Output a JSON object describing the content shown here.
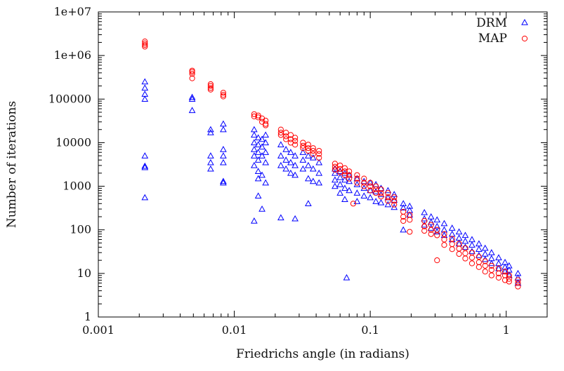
{
  "chart_data": {
    "type": "scatter",
    "title": "",
    "xlabel": "Friedrichs angle (in radians)",
    "ylabel": "Number of iterations",
    "xscale": "log",
    "yscale": "log",
    "xlim": [
      0.001,
      2
    ],
    "ylim": [
      1,
      10000000
    ],
    "grid": false,
    "legend_position": "top-right",
    "x_ticks": [
      {
        "value": 0.001,
        "label": "0.001"
      },
      {
        "value": 0.01,
        "label": "0.01"
      },
      {
        "value": 0.1,
        "label": "0.1"
      },
      {
        "value": 1,
        "label": "1"
      }
    ],
    "y_ticks": [
      {
        "value": 1,
        "label": "1"
      },
      {
        "value": 10,
        "label": "10"
      },
      {
        "value": 100,
        "label": "100"
      },
      {
        "value": 1000,
        "label": "1000"
      },
      {
        "value": 10000,
        "label": "10000"
      },
      {
        "value": 100000,
        "label": "100000"
      },
      {
        "value": 1000000,
        "label": "1e+06"
      },
      {
        "value": 10000000,
        "label": "1e+07"
      }
    ],
    "series": [
      {
        "name": "DRM",
        "marker": "triangle",
        "color": "#0000ff",
        "points": [
          [
            0.0022,
            250000
          ],
          [
            0.0022,
            180000
          ],
          [
            0.0022,
            130000
          ],
          [
            0.0022,
            100000
          ],
          [
            0.0022,
            5000
          ],
          [
            0.0022,
            2900
          ],
          [
            0.0022,
            2700
          ],
          [
            0.0022,
            550
          ],
          [
            0.0049,
            110000
          ],
          [
            0.0049,
            100000
          ],
          [
            0.0049,
            55000
          ],
          [
            0.0067,
            20000
          ],
          [
            0.0067,
            17000
          ],
          [
            0.0067,
            5000
          ],
          [
            0.0067,
            3500
          ],
          [
            0.0067,
            2500
          ],
          [
            0.0083,
            27000
          ],
          [
            0.0083,
            20000
          ],
          [
            0.0083,
            7000
          ],
          [
            0.0083,
            5000
          ],
          [
            0.0083,
            3500
          ],
          [
            0.0083,
            1300
          ],
          [
            0.0083,
            1200
          ],
          [
            0.014,
            20000
          ],
          [
            0.014,
            15000
          ],
          [
            0.014,
            10000
          ],
          [
            0.014,
            7000
          ],
          [
            0.014,
            5000
          ],
          [
            0.014,
            3000
          ],
          [
            0.014,
            160
          ],
          [
            0.015,
            13000
          ],
          [
            0.015,
            9000
          ],
          [
            0.015,
            6000
          ],
          [
            0.015,
            4000
          ],
          [
            0.015,
            2200
          ],
          [
            0.015,
            1500
          ],
          [
            0.015,
            600
          ],
          [
            0.016,
            12000
          ],
          [
            0.016,
            8000
          ],
          [
            0.016,
            5000
          ],
          [
            0.016,
            1800
          ],
          [
            0.016,
            300
          ],
          [
            0.017,
            15000
          ],
          [
            0.017,
            10000
          ],
          [
            0.017,
            6000
          ],
          [
            0.017,
            3500
          ],
          [
            0.017,
            1200
          ],
          [
            0.022,
            9000
          ],
          [
            0.022,
            5000
          ],
          [
            0.022,
            3000
          ],
          [
            0.022,
            190
          ],
          [
            0.024,
            7000
          ],
          [
            0.024,
            4000
          ],
          [
            0.024,
            2500
          ],
          [
            0.026,
            6000
          ],
          [
            0.026,
            3500
          ],
          [
            0.026,
            2000
          ],
          [
            0.028,
            5000
          ],
          [
            0.028,
            3000
          ],
          [
            0.028,
            1800
          ],
          [
            0.028,
            180
          ],
          [
            0.032,
            6000
          ],
          [
            0.032,
            4000
          ],
          [
            0.032,
            2500
          ],
          [
            0.035,
            5000
          ],
          [
            0.035,
            3000
          ],
          [
            0.035,
            1500
          ],
          [
            0.038,
            4500
          ],
          [
            0.038,
            2500
          ],
          [
            0.038,
            1300
          ],
          [
            0.042,
            3500
          ],
          [
            0.042,
            2000
          ],
          [
            0.042,
            1200
          ],
          [
            0.035,
            400
          ],
          [
            0.055,
            2500
          ],
          [
            0.055,
            2000
          ],
          [
            0.055,
            1400
          ],
          [
            0.055,
            1000
          ],
          [
            0.06,
            2200
          ],
          [
            0.06,
            1600
          ],
          [
            0.06,
            1100
          ],
          [
            0.06,
            700
          ],
          [
            0.065,
            2000
          ],
          [
            0.065,
            1400
          ],
          [
            0.065,
            900
          ],
          [
            0.065,
            500
          ],
          [
            0.07,
            1800
          ],
          [
            0.07,
            1300
          ],
          [
            0.07,
            800
          ],
          [
            0.067,
            8
          ],
          [
            0.08,
            1500
          ],
          [
            0.08,
            1100
          ],
          [
            0.08,
            700
          ],
          [
            0.08,
            450
          ],
          [
            0.09,
            1300
          ],
          [
            0.09,
            900
          ],
          [
            0.09,
            600
          ],
          [
            0.1,
            1200
          ],
          [
            0.1,
            800
          ],
          [
            0.1,
            550
          ],
          [
            0.11,
            1100
          ],
          [
            0.11,
            750
          ],
          [
            0.11,
            450
          ],
          [
            0.12,
            900
          ],
          [
            0.12,
            650
          ],
          [
            0.12,
            420
          ],
          [
            0.135,
            800
          ],
          [
            0.135,
            550
          ],
          [
            0.135,
            380
          ],
          [
            0.15,
            650
          ],
          [
            0.15,
            480
          ],
          [
            0.15,
            330
          ],
          [
            0.175,
            400
          ],
          [
            0.175,
            320
          ],
          [
            0.175,
            100
          ],
          [
            0.195,
            350
          ],
          [
            0.195,
            280
          ],
          [
            0.195,
            220
          ],
          [
            0.25,
            250
          ],
          [
            0.25,
            180
          ],
          [
            0.25,
            130
          ],
          [
            0.28,
            200
          ],
          [
            0.28,
            150
          ],
          [
            0.28,
            110
          ],
          [
            0.31,
            170
          ],
          [
            0.31,
            120
          ],
          [
            0.31,
            90
          ],
          [
            0.35,
            140
          ],
          [
            0.35,
            100
          ],
          [
            0.35,
            75
          ],
          [
            0.4,
            110
          ],
          [
            0.4,
            80
          ],
          [
            0.4,
            60
          ],
          [
            0.45,
            90
          ],
          [
            0.45,
            65
          ],
          [
            0.45,
            48
          ],
          [
            0.5,
            75
          ],
          [
            0.5,
            55
          ],
          [
            0.5,
            40
          ],
          [
            0.56,
            60
          ],
          [
            0.56,
            45
          ],
          [
            0.56,
            32
          ],
          [
            0.63,
            48
          ],
          [
            0.63,
            36
          ],
          [
            0.63,
            26
          ],
          [
            0.7,
            38
          ],
          [
            0.7,
            28
          ],
          [
            0.7,
            21
          ],
          [
            0.78,
            30
          ],
          [
            0.78,
            22
          ],
          [
            0.78,
            17
          ],
          [
            0.88,
            23
          ],
          [
            0.88,
            17
          ],
          [
            0.88,
            13
          ],
          [
            0.98,
            18
          ],
          [
            0.98,
            14
          ],
          [
            0.98,
            11
          ],
          [
            1.05,
            15
          ],
          [
            1.05,
            12
          ],
          [
            1.05,
            9
          ],
          [
            1.22,
            10
          ],
          [
            1.22,
            8
          ],
          [
            1.22,
            6
          ]
        ]
      },
      {
        "name": "MAP",
        "marker": "circle",
        "color": "#ff0000",
        "points": [
          [
            0.0022,
            2100000
          ],
          [
            0.0022,
            1900000
          ],
          [
            0.0022,
            1750000
          ],
          [
            0.0022,
            1600000
          ],
          [
            0.0049,
            450000
          ],
          [
            0.0049,
            420000
          ],
          [
            0.0049,
            380000
          ],
          [
            0.0049,
            300000
          ],
          [
            0.0067,
            220000
          ],
          [
            0.0067,
            200000
          ],
          [
            0.0067,
            180000
          ],
          [
            0.0067,
            165000
          ],
          [
            0.0083,
            140000
          ],
          [
            0.0083,
            125000
          ],
          [
            0.0083,
            115000
          ],
          [
            0.014,
            45000
          ],
          [
            0.014,
            40000
          ],
          [
            0.015,
            42000
          ],
          [
            0.015,
            38000
          ],
          [
            0.016,
            36000
          ],
          [
            0.016,
            30000
          ],
          [
            0.017,
            32000
          ],
          [
            0.017,
            27000
          ],
          [
            0.017,
            25000
          ],
          [
            0.022,
            20000
          ],
          [
            0.022,
            17000
          ],
          [
            0.022,
            15000
          ],
          [
            0.024,
            17000
          ],
          [
            0.024,
            14000
          ],
          [
            0.024,
            12000
          ],
          [
            0.026,
            15000
          ],
          [
            0.026,
            12000
          ],
          [
            0.026,
            10000
          ],
          [
            0.028,
            13000
          ],
          [
            0.028,
            11000
          ],
          [
            0.028,
            9000
          ],
          [
            0.032,
            10000
          ],
          [
            0.032,
            8500
          ],
          [
            0.032,
            7500
          ],
          [
            0.035,
            9000
          ],
          [
            0.035,
            7500
          ],
          [
            0.035,
            6500
          ],
          [
            0.038,
            7500
          ],
          [
            0.038,
            6500
          ],
          [
            0.038,
            5500
          ],
          [
            0.042,
            6500
          ],
          [
            0.042,
            5500
          ],
          [
            0.042,
            4500
          ],
          [
            0.055,
            3300
          ],
          [
            0.055,
            2800
          ],
          [
            0.055,
            2400
          ],
          [
            0.06,
            3000
          ],
          [
            0.06,
            2500
          ],
          [
            0.06,
            2100
          ],
          [
            0.065,
            2600
          ],
          [
            0.065,
            2200
          ],
          [
            0.065,
            1800
          ],
          [
            0.07,
            2200
          ],
          [
            0.07,
            1800
          ],
          [
            0.07,
            1500
          ],
          [
            0.075,
            400
          ],
          [
            0.08,
            1800
          ],
          [
            0.08,
            1500
          ],
          [
            0.08,
            1200
          ],
          [
            0.09,
            1500
          ],
          [
            0.09,
            1200
          ],
          [
            0.09,
            1000
          ],
          [
            0.1,
            1200
          ],
          [
            0.1,
            1000
          ],
          [
            0.1,
            800
          ],
          [
            0.11,
            1000
          ],
          [
            0.11,
            850
          ],
          [
            0.11,
            700
          ],
          [
            0.12,
            850
          ],
          [
            0.12,
            700
          ],
          [
            0.12,
            580
          ],
          [
            0.135,
            700
          ],
          [
            0.135,
            560
          ],
          [
            0.135,
            460
          ],
          [
            0.15,
            560
          ],
          [
            0.15,
            460
          ],
          [
            0.15,
            380
          ],
          [
            0.175,
            260
          ],
          [
            0.175,
            200
          ],
          [
            0.175,
            160
          ],
          [
            0.195,
            220
          ],
          [
            0.195,
            170
          ],
          [
            0.195,
            90
          ],
          [
            0.25,
            160
          ],
          [
            0.25,
            120
          ],
          [
            0.25,
            95
          ],
          [
            0.28,
            130
          ],
          [
            0.28,
            100
          ],
          [
            0.28,
            80
          ],
          [
            0.31,
            100
          ],
          [
            0.31,
            75
          ],
          [
            0.31,
            20
          ],
          [
            0.35,
            80
          ],
          [
            0.35,
            60
          ],
          [
            0.35,
            45
          ],
          [
            0.4,
            62
          ],
          [
            0.4,
            47
          ],
          [
            0.4,
            36
          ],
          [
            0.45,
            48
          ],
          [
            0.45,
            37
          ],
          [
            0.45,
            28
          ],
          [
            0.5,
            38
          ],
          [
            0.5,
            29
          ],
          [
            0.5,
            22
          ],
          [
            0.56,
            30
          ],
          [
            0.56,
            23
          ],
          [
            0.56,
            17
          ],
          [
            0.63,
            24
          ],
          [
            0.63,
            18
          ],
          [
            0.63,
            14
          ],
          [
            0.7,
            19
          ],
          [
            0.7,
            15
          ],
          [
            0.7,
            11
          ],
          [
            0.78,
            15
          ],
          [
            0.78,
            12
          ],
          [
            0.78,
            9
          ],
          [
            0.88,
            13
          ],
          [
            0.88,
            10
          ],
          [
            0.88,
            8
          ],
          [
            0.98,
            11
          ],
          [
            0.98,
            9
          ],
          [
            0.98,
            7
          ],
          [
            1.05,
            9
          ],
          [
            1.05,
            7.5
          ],
          [
            1.05,
            6.5
          ],
          [
            1.22,
            7
          ],
          [
            1.22,
            6
          ],
          [
            1.22,
            5
          ]
        ]
      }
    ]
  }
}
